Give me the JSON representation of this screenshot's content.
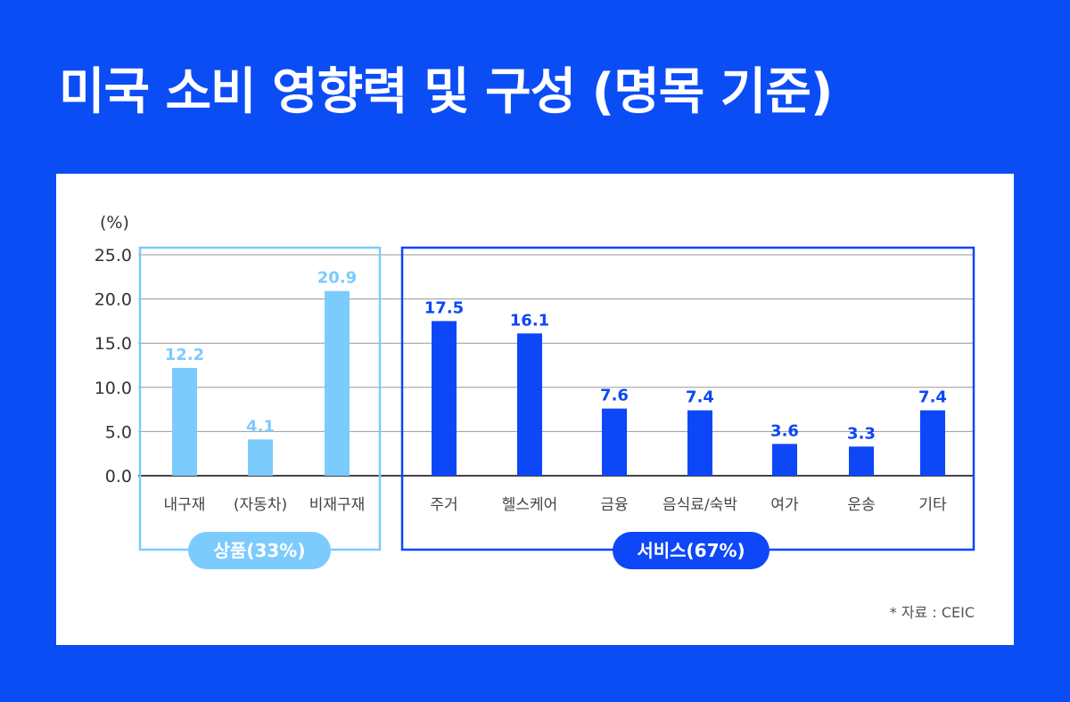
{
  "title": "미국 소비 영향력 및 구성 (명목 기준)",
  "chart_data": {
    "type": "bar",
    "title": "미국 소비 영향력 및 구성 (명목 기준)",
    "ylabel": "(%)",
    "ylim": [
      0,
      25
    ],
    "yticks": [
      "0.0",
      "5.0",
      "10.0",
      "15.0",
      "20.0",
      "25.0"
    ],
    "grid": true,
    "groups": [
      {
        "name": "상품(33%)",
        "color": "#7ccbfd",
        "categories": [
          "내구재",
          "(자동차)",
          "비재구재"
        ],
        "values": [
          12.2,
          4.1,
          20.9
        ],
        "labels": [
          "12.2",
          "4.1",
          "20.9"
        ]
      },
      {
        "name": "서비스(67%)",
        "color": "#0d47f7",
        "categories": [
          "주거",
          "헬스케어",
          "금융",
          "음식료/숙박",
          "여가",
          "운송",
          "기타"
        ],
        "values": [
          17.5,
          16.1,
          7.6,
          7.4,
          3.6,
          3.3,
          7.4
        ],
        "labels": [
          "17.5",
          "16.1",
          "7.6",
          "7.4",
          "3.6",
          "3.3",
          "7.4"
        ]
      }
    ],
    "source": "* 자료 : CEIC"
  }
}
